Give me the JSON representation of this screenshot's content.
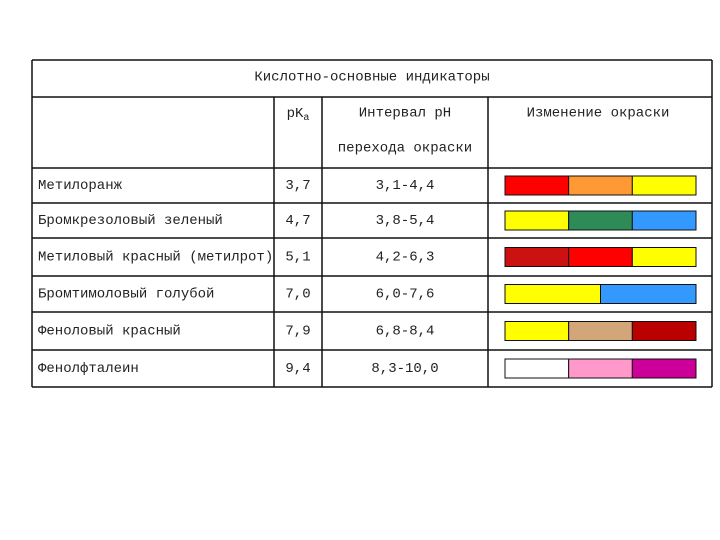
{
  "table": {
    "title": "Кислотно-основные индикаторы",
    "header": {
      "pka": {
        "main": "pK",
        "sub": "a"
      },
      "interval": [
        "Интервал pH",
        "перехода окраски"
      ],
      "color_change": "Изменение окраски"
    },
    "rows": [
      {
        "name": "Метилоранж",
        "pka": "3,7",
        "interval": "3,1-4,4",
        "colors": [
          "#ff0000",
          "#ff9933",
          "#ffff00"
        ]
      },
      {
        "name": "Бромкрезоловый зеленый",
        "pka": "4,7",
        "interval": "3,8-5,4",
        "colors": [
          "#ffff00",
          "#2e8b57",
          "#3399ff"
        ]
      },
      {
        "name": "Метиловый красный (метилрот)",
        "pka": "5,1",
        "interval": "4,2-6,3",
        "colors": [
          "#cc1111",
          "#ff0000",
          "#ffff00"
        ]
      },
      {
        "name": "Бромтимоловый голубой",
        "pka": "7,0",
        "interval": "6,0-7,6",
        "colors": [
          "#ffff00",
          "#3399ff"
        ]
      },
      {
        "name": "Феноловый красный",
        "pka": "7,9",
        "interval": "6,8-8,4",
        "colors": [
          "#ffff00",
          "#d2a679",
          "#bb0000"
        ]
      },
      {
        "name": "Фенолфталеин",
        "pka": "9,4",
        "interval": "8,3-10,0",
        "colors": [
          "#ffffff",
          "#ff99cc",
          "#cc0099"
        ]
      }
    ]
  }
}
